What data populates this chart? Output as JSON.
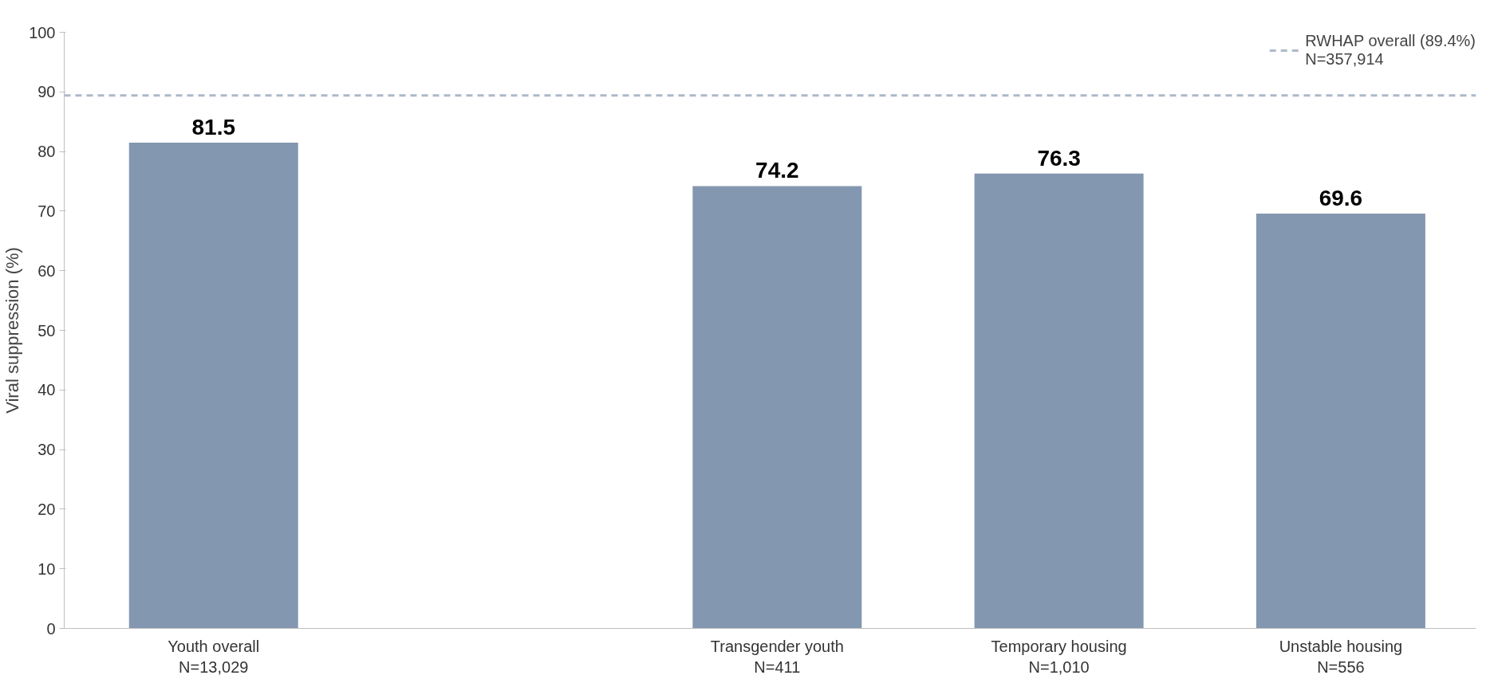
{
  "chart_data": {
    "type": "bar",
    "ylabel": "Viral suppression (%)",
    "categories": [
      "Youth overall\nN=13,029",
      null,
      "Transgender youth\nN=411",
      "Temporary housing\nN=1,010",
      "Unstable housing\nN=556"
    ],
    "values": [
      81.5,
      null,
      74.2,
      76.3,
      69.6
    ],
    "color": "#8497b0",
    "ylim": [
      0,
      100
    ],
    "yticks": [
      0,
      10,
      20,
      30,
      40,
      50,
      60,
      70,
      80,
      90,
      100
    ],
    "data_labels": true,
    "ref_lines": [
      {
        "axis": "y",
        "value": 89.4,
        "label": "RWHAP overall (89.4%)\nN=357,914",
        "color": "#adb9ca",
        "line_style": "dashed"
      }
    ],
    "legend": "top right",
    "grid": false
  }
}
